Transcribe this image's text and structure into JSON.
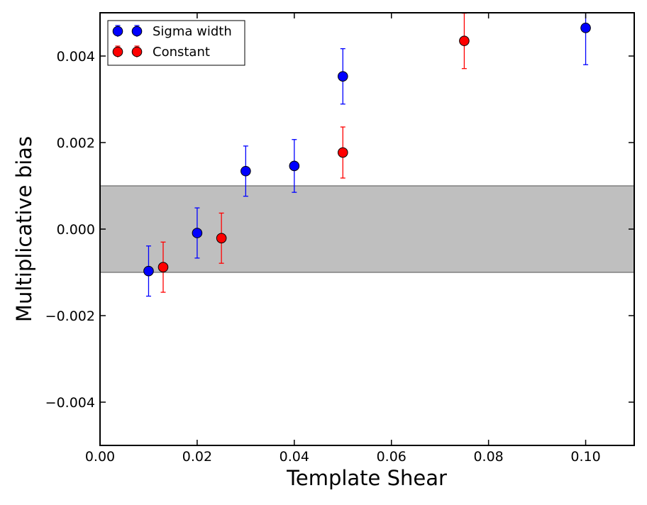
{
  "chart_data": {
    "type": "scatter",
    "xlabel": "Template Shear",
    "ylabel": "Multiplicative bias",
    "xlim": [
      0.0,
      0.11
    ],
    "ylim": [
      -0.005,
      0.005
    ],
    "xticks": [
      0.0,
      0.02,
      0.04,
      0.06,
      0.08,
      0.1
    ],
    "xtick_labels": [
      "0.00",
      "0.02",
      "0.04",
      "0.06",
      "0.08",
      "0.10"
    ],
    "yticks": [
      -0.004,
      -0.002,
      0.0,
      0.002,
      0.004
    ],
    "ytick_labels": [
      "−0.004",
      "−0.002",
      "0.000",
      "0.002",
      "0.004"
    ],
    "grid": false,
    "legend_position": "top-left",
    "band": {
      "ymin": -0.001,
      "ymax": 0.001,
      "color": "#bfbfbf"
    },
    "series": [
      {
        "name": "Sigma width",
        "color": "#0000ff",
        "points": [
          {
            "x": 0.01,
            "y": -0.00097,
            "err": 0.00058
          },
          {
            "x": 0.02,
            "y": -9e-05,
            "err": 0.00058
          },
          {
            "x": 0.03,
            "y": 0.00134,
            "err": 0.00058
          },
          {
            "x": 0.04,
            "y": 0.00146,
            "err": 0.00061
          },
          {
            "x": 0.05,
            "y": 0.00353,
            "err": 0.00064
          },
          {
            "x": 0.1,
            "y": 0.00465,
            "err": 0.00085
          }
        ]
      },
      {
        "name": "Constant",
        "color": "#ff0000",
        "points": [
          {
            "x": 0.013,
            "y": -0.00088,
            "err": 0.00058
          },
          {
            "x": 0.025,
            "y": -0.00021,
            "err": 0.00058
          },
          {
            "x": 0.05,
            "y": 0.00177,
            "err": 0.00059
          },
          {
            "x": 0.075,
            "y": 0.00435,
            "err": 0.00064
          }
        ]
      }
    ]
  }
}
